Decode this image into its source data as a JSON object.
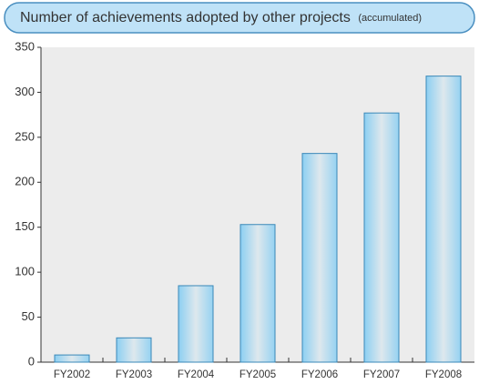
{
  "chart_data": {
    "type": "bar",
    "title": "Number of achievements adopted by other projects",
    "subtitle": "(accumulated)",
    "categories": [
      "FY2002",
      "FY2003",
      "FY2004",
      "FY2005",
      "FY2006",
      "FY2007",
      "FY2008"
    ],
    "values": [
      8,
      27,
      85,
      153,
      232,
      277,
      318
    ],
    "color": "#8ccff2",
    "ylim": [
      0,
      350
    ],
    "yticks": [
      0,
      50,
      100,
      150,
      200,
      250,
      300,
      350
    ],
    "grid": false
  }
}
